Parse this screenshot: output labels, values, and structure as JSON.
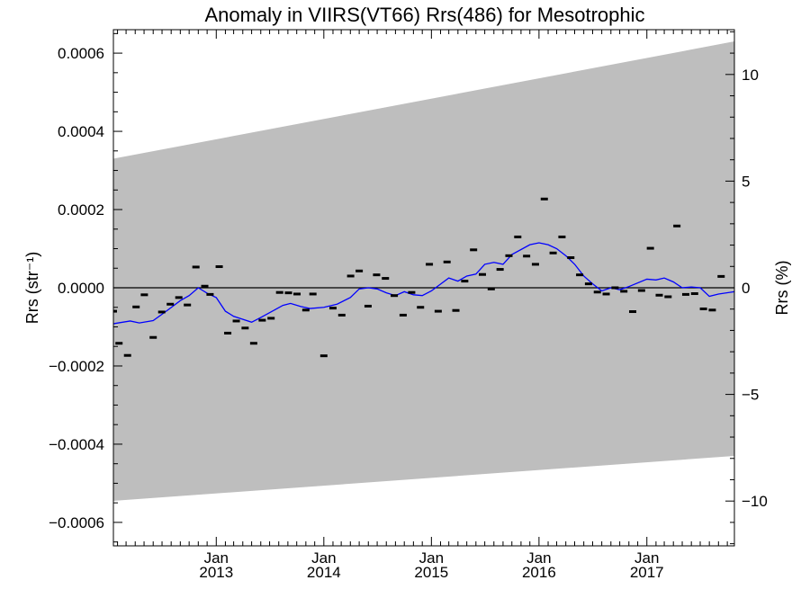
{
  "chart_data": {
    "type": "scatter",
    "title": "Anomaly in VIIRS(VT66) Rrs(486) for Mesotrophic",
    "ylabel_left": "Rrs (str⁻¹)",
    "ylabel_right": "Rrs (%)",
    "ylim_left": [
      -0.00066,
      0.00066
    ],
    "ylim_right": [
      -12.1,
      12.1
    ],
    "xlim": [
      "2012-01-18",
      "2017-10-25"
    ],
    "y_ticks_left": [
      0.0006,
      0.0004,
      0.0002,
      0.0,
      -0.0002,
      -0.0004,
      -0.0006
    ],
    "y_tick_labels_left": [
      "0.0006",
      "0.0004",
      "0.0002",
      "0.0000",
      "−0.0002",
      "−0.0004",
      "−0.0006"
    ],
    "y_ticks_right": [
      10,
      5,
      0,
      -5,
      -10
    ],
    "y_tick_labels_right": [
      "10",
      "5",
      "0",
      "−5",
      "−10"
    ],
    "x_ticks": [
      {
        "date": "2013-01-01",
        "month": "Jan",
        "year": "2013"
      },
      {
        "date": "2014-01-01",
        "month": "Jan",
        "year": "2014"
      },
      {
        "date": "2015-01-01",
        "month": "Jan",
        "year": "2015"
      },
      {
        "date": "2016-01-01",
        "month": "Jan",
        "year": "2016"
      },
      {
        "date": "2017-01-01",
        "month": "Jan",
        "year": "2017"
      }
    ],
    "uncertainty_band": {
      "color": "#bebebe",
      "upper": [
        [
          "2012-01-18",
          0.00033
        ],
        [
          "2017-10-25",
          0.00063
        ]
      ],
      "lower": [
        [
          "2012-01-18",
          -0.000545
        ],
        [
          "2017-10-25",
          -0.00043
        ]
      ]
    },
    "zero_line": 0.0,
    "points": {
      "color": "#000000",
      "values": [
        [
          "2012-01-18",
          -6e-05
        ],
        [
          "2012-02-06",
          -0.000142
        ],
        [
          "2012-03-06",
          -0.000173
        ],
        [
          "2012-04-04",
          -4.9e-05
        ],
        [
          "2012-05-02",
          -1.8e-05
        ],
        [
          "2012-06-01",
          -0.000127
        ],
        [
          "2012-06-30",
          -6.2e-05
        ],
        [
          "2012-07-29",
          -4.2e-05
        ],
        [
          "2012-08-27",
          -2.5e-05
        ],
        [
          "2012-09-25",
          -4.4e-05
        ],
        [
          "2012-10-24",
          5.3e-05
        ],
        [
          "2012-11-23",
          4e-06
        ],
        [
          "2012-12-11",
          -1.7e-05
        ],
        [
          "2013-01-11",
          5.4e-05
        ],
        [
          "2013-02-09",
          -0.000116
        ],
        [
          "2013-03-10",
          -8.5e-05
        ],
        [
          "2013-04-09",
          -0.000103
        ],
        [
          "2013-05-08",
          -0.000142
        ],
        [
          "2013-06-06",
          -8.3e-05
        ],
        [
          "2013-07-06",
          -7.8e-05
        ],
        [
          "2013-08-04",
          -1.2e-05
        ],
        [
          "2013-09-03",
          -1.3e-05
        ],
        [
          "2013-10-02",
          -1.6e-05
        ],
        [
          "2013-11-01",
          -5.7e-05
        ],
        [
          "2013-11-25",
          -1.6e-05
        ],
        [
          "2014-01-01",
          -0.000174
        ],
        [
          "2014-02-01",
          -5.2e-05
        ],
        [
          "2014-03-03",
          -7e-05
        ],
        [
          "2014-04-02",
          3e-05
        ],
        [
          "2014-05-01",
          4.3e-05
        ],
        [
          "2014-05-31",
          -4.7e-05
        ],
        [
          "2014-06-29",
          3.3e-05
        ],
        [
          "2014-07-29",
          2.4e-05
        ],
        [
          "2014-08-28",
          -2e-05
        ],
        [
          "2014-09-27",
          -7e-05
        ],
        [
          "2014-10-26",
          -1.2e-05
        ],
        [
          "2014-11-25",
          -5e-05
        ],
        [
          "2014-12-25",
          6e-05
        ],
        [
          "2015-01-24",
          -6e-05
        ],
        [
          "2015-02-23",
          6.6e-05
        ],
        [
          "2015-03-25",
          -5.8e-05
        ],
        [
          "2015-04-24",
          1.7e-05
        ],
        [
          "2015-05-24",
          9.7e-05
        ],
        [
          "2015-06-23",
          3.4e-05
        ],
        [
          "2015-07-23",
          -3e-06
        ],
        [
          "2015-08-22",
          4.7e-05
        ],
        [
          "2015-09-21",
          8.2e-05
        ],
        [
          "2015-10-21",
          0.00013
        ],
        [
          "2015-11-20",
          8.1e-05
        ],
        [
          "2015-12-20",
          6e-05
        ],
        [
          "2016-01-19",
          0.000227
        ],
        [
          "2016-02-18",
          8.9e-05
        ],
        [
          "2016-03-19",
          0.00013
        ],
        [
          "2016-04-18",
          7.7e-05
        ],
        [
          "2016-05-18",
          3.3e-05
        ],
        [
          "2016-06-17",
          1e-05
        ],
        [
          "2016-07-17",
          -1.1e-05
        ],
        [
          "2016-08-16",
          -1.6e-05
        ],
        [
          "2016-09-15",
          0.0
        ],
        [
          "2016-10-15",
          -9e-06
        ],
        [
          "2016-11-14",
          -6.1e-05
        ],
        [
          "2016-12-14",
          -7e-06
        ],
        [
          "2017-01-13",
          0.000101
        ],
        [
          "2017-02-12",
          -1.9e-05
        ],
        [
          "2017-03-14",
          -2.3e-05
        ],
        [
          "2017-04-13",
          0.000158
        ],
        [
          "2017-05-13",
          -1.7e-05
        ],
        [
          "2017-06-12",
          -1.5e-05
        ],
        [
          "2017-07-12",
          -5.4e-05
        ],
        [
          "2017-08-11",
          -5.7e-05
        ],
        [
          "2017-09-10",
          2.9e-05
        ]
      ]
    },
    "trend_line": {
      "color": "#0000ff",
      "values": [
        [
          "2012-01-18",
          -9.2e-05
        ],
        [
          "2012-03-15",
          -8.5e-05
        ],
        [
          "2012-04-15",
          -9e-05
        ],
        [
          "2012-06-01",
          -8.4e-05
        ],
        [
          "2012-07-15",
          -6e-05
        ],
        [
          "2012-09-01",
          -3.3e-05
        ],
        [
          "2012-10-01",
          -2e-05
        ],
        [
          "2012-11-01",
          0.0
        ],
        [
          "2012-12-01",
          -1.4e-05
        ],
        [
          "2013-01-01",
          -2.5e-05
        ],
        [
          "2013-02-01",
          -6e-05
        ],
        [
          "2013-03-01",
          -7.3e-05
        ],
        [
          "2013-05-01",
          -8.8e-05
        ],
        [
          "2013-06-01",
          -7.6e-05
        ],
        [
          "2013-07-15",
          -5.8e-05
        ],
        [
          "2013-08-15",
          -4.5e-05
        ],
        [
          "2013-09-10",
          -4e-05
        ],
        [
          "2013-10-15",
          -4.8e-05
        ],
        [
          "2013-11-15",
          -5.3e-05
        ],
        [
          "2014-01-01",
          -5e-05
        ],
        [
          "2014-02-15",
          -4.2e-05
        ],
        [
          "2014-04-01",
          -2.5e-05
        ],
        [
          "2014-05-01",
          -3e-06
        ],
        [
          "2014-06-01",
          0.0
        ],
        [
          "2014-07-01",
          -3e-06
        ],
        [
          "2014-08-01",
          -1.3e-05
        ],
        [
          "2014-09-01",
          -2e-05
        ],
        [
          "2014-10-01",
          -1e-05
        ],
        [
          "2014-11-01",
          -1.8e-05
        ],
        [
          "2014-12-01",
          -2e-05
        ],
        [
          "2015-01-01",
          -8e-06
        ],
        [
          "2015-03-01",
          2.5e-05
        ],
        [
          "2015-04-01",
          1.7e-05
        ],
        [
          "2015-05-01",
          3e-05
        ],
        [
          "2015-06-01",
          3.5e-05
        ],
        [
          "2015-07-01",
          6e-05
        ],
        [
          "2015-08-01",
          6.5e-05
        ],
        [
          "2015-09-01",
          6e-05
        ],
        [
          "2015-10-01",
          8.5e-05
        ],
        [
          "2015-12-01",
          0.00011
        ],
        [
          "2016-01-01",
          0.000115
        ],
        [
          "2016-02-01",
          0.00011
        ],
        [
          "2016-03-01",
          0.0001
        ],
        [
          "2016-04-01",
          8.2e-05
        ],
        [
          "2016-05-01",
          6e-05
        ],
        [
          "2016-06-01",
          3e-05
        ],
        [
          "2016-07-01",
          1e-05
        ],
        [
          "2016-08-01",
          -8e-06
        ],
        [
          "2016-09-01",
          0.0
        ],
        [
          "2016-10-01",
          -5e-06
        ],
        [
          "2016-11-01",
          3e-06
        ],
        [
          "2017-01-01",
          2.2e-05
        ],
        [
          "2017-02-01",
          2e-05
        ],
        [
          "2017-03-01",
          2.5e-05
        ],
        [
          "2017-04-01",
          1.5e-05
        ],
        [
          "2017-05-01",
          0.0
        ],
        [
          "2017-06-01",
          2e-06
        ],
        [
          "2017-07-01",
          0.0
        ],
        [
          "2017-08-01",
          -2.2e-05
        ],
        [
          "2017-09-01",
          -1.6e-05
        ],
        [
          "2017-10-25",
          -1e-05
        ]
      ]
    },
    "grid": false
  }
}
